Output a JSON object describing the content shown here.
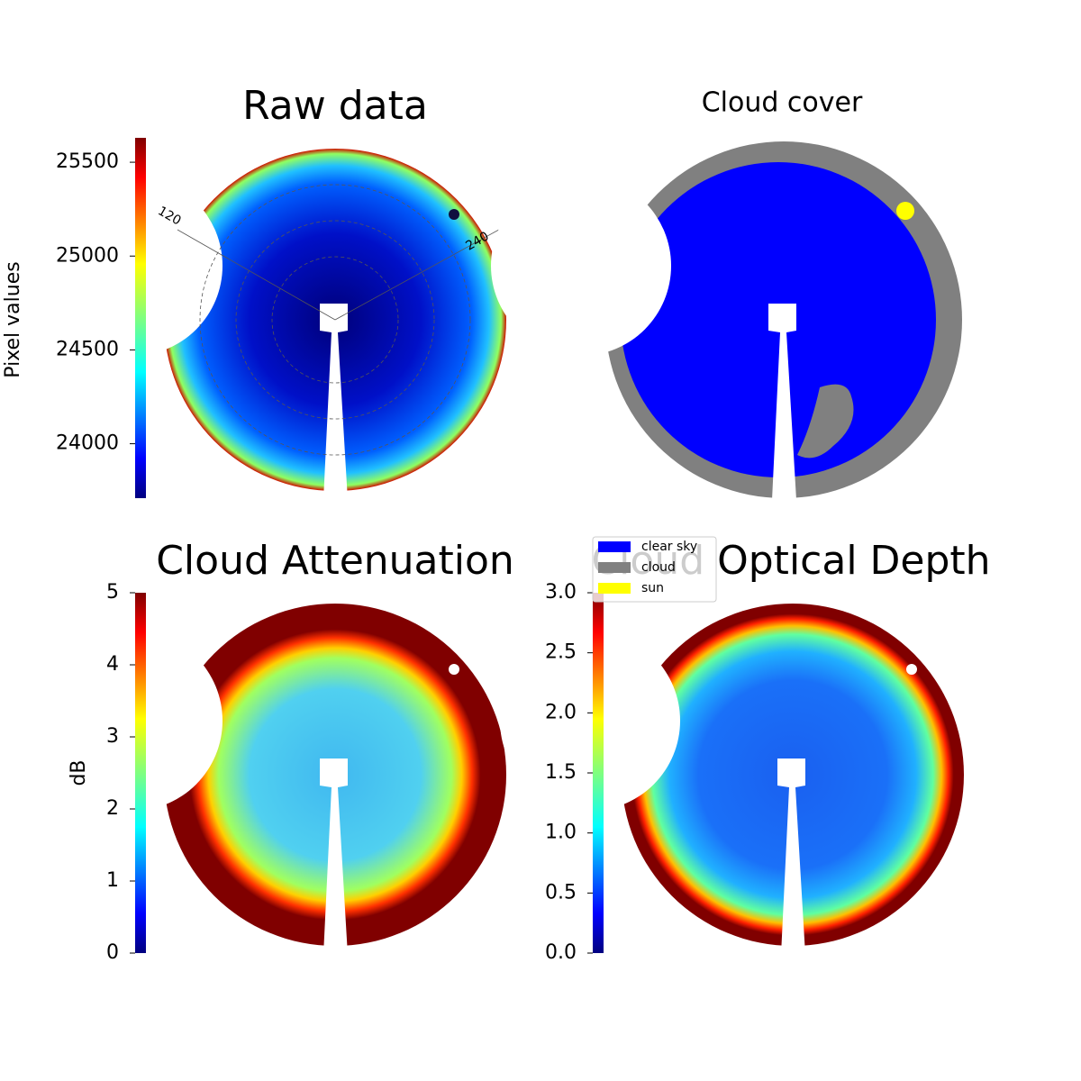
{
  "chart_data": [
    {
      "type": "heatmap",
      "title": "Raw data",
      "colorbar_label": "Pixel values",
      "colormap": "jet",
      "ylim": [
        23710,
        25630
      ],
      "yticks": [
        24000,
        24500,
        25000,
        25500
      ],
      "polar_labels": [
        "120",
        "240"
      ]
    },
    {
      "type": "categorical_image",
      "title": "Cloud cover",
      "series": [
        {
          "name": "clear sky",
          "color": "#0000ff"
        },
        {
          "name": "cloud",
          "color": "#808080"
        },
        {
          "name": "sun",
          "color": "#ffff00"
        }
      ]
    },
    {
      "type": "heatmap",
      "title": "Cloud Attenuation",
      "colorbar_label": "dB",
      "colormap": "jet",
      "ylim": [
        0,
        5
      ],
      "yticks": [
        0,
        1,
        2,
        3,
        4,
        5
      ]
    },
    {
      "type": "heatmap",
      "title": "Cloud Optical Depth",
      "colormap": "jet",
      "ylim": [
        0,
        3
      ],
      "yticks": [
        {
          "value": 0,
          "label": "0.0"
        },
        {
          "value": 0.5,
          "label": "0.5"
        },
        {
          "value": 1,
          "label": "1.0"
        },
        {
          "value": 1.5,
          "label": "1.5"
        },
        {
          "value": 2,
          "label": "2.0"
        },
        {
          "value": 2.5,
          "label": "2.5"
        },
        {
          "value": 3,
          "label": "3.0"
        }
      ]
    }
  ]
}
